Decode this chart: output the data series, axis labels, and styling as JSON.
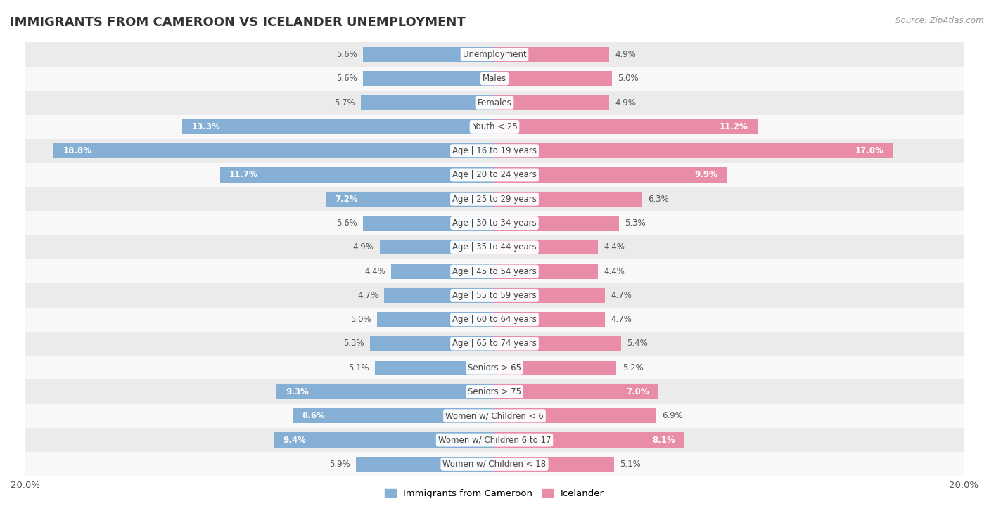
{
  "title": "IMMIGRANTS FROM CAMEROON VS ICELANDER UNEMPLOYMENT",
  "source": "Source: ZipAtlas.com",
  "categories": [
    "Unemployment",
    "Males",
    "Females",
    "Youth < 25",
    "Age | 16 to 19 years",
    "Age | 20 to 24 years",
    "Age | 25 to 29 years",
    "Age | 30 to 34 years",
    "Age | 35 to 44 years",
    "Age | 45 to 54 years",
    "Age | 55 to 59 years",
    "Age | 60 to 64 years",
    "Age | 65 to 74 years",
    "Seniors > 65",
    "Seniors > 75",
    "Women w/ Children < 6",
    "Women w/ Children 6 to 17",
    "Women w/ Children < 18"
  ],
  "cameroon": [
    5.6,
    5.6,
    5.7,
    13.3,
    18.8,
    11.7,
    7.2,
    5.6,
    4.9,
    4.4,
    4.7,
    5.0,
    5.3,
    5.1,
    9.3,
    8.6,
    9.4,
    5.9
  ],
  "icelander": [
    4.9,
    5.0,
    4.9,
    11.2,
    17.0,
    9.9,
    6.3,
    5.3,
    4.4,
    4.4,
    4.7,
    4.7,
    5.4,
    5.2,
    7.0,
    6.9,
    8.1,
    5.1
  ],
  "cameroon_color": "#85afd4",
  "icelander_color": "#e88ca8",
  "background_row_light": "#ebebeb",
  "background_row_white": "#f8f8f8",
  "axis_limit": 20.0,
  "label_fontsize": 8.5,
  "category_fontsize": 8.5,
  "title_fontsize": 13,
  "source_fontsize": 8.5,
  "bar_height": 0.62,
  "inside_label_threshold": 7.0
}
